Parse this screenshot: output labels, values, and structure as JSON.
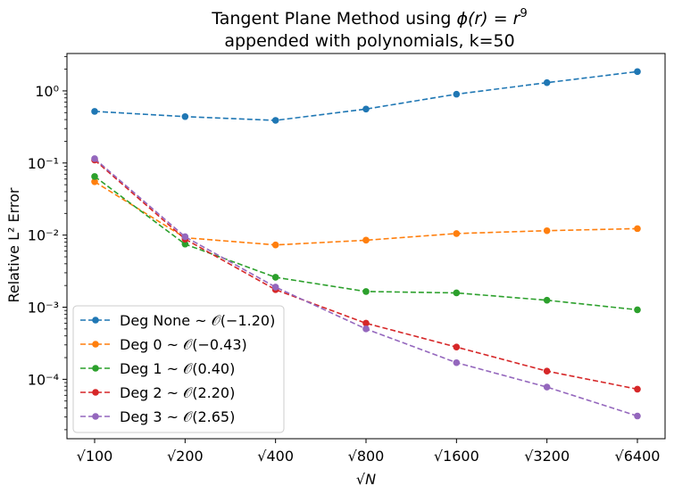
{
  "chart_data": {
    "type": "line",
    "title_line1_prefix": "Tangent Plane Method using ",
    "title_line1_math": "ϕ(r) = r",
    "title_line1_sup": "9",
    "title_line2": "appended with polynomials, k=50",
    "xlabel": "√N",
    "ylabel": "Relative L² Error",
    "y_scale": "log",
    "ylim": [
      1.5e-05,
      3.3
    ],
    "categories": [
      "√100",
      "√200",
      "√400",
      "√800",
      "√1600",
      "√3200",
      "√6400"
    ],
    "x": [
      100,
      200,
      400,
      800,
      1600,
      3200,
      6400
    ],
    "y_ticks": [
      {
        "value": 1,
        "label": "10⁰"
      },
      {
        "value": 0.1,
        "label": "10⁻¹"
      },
      {
        "value": 0.01,
        "label": "10⁻²"
      },
      {
        "value": 0.001,
        "label": "10⁻³"
      },
      {
        "value": 0.0001,
        "label": "10⁻⁴"
      }
    ],
    "legend_position": "lower-left",
    "series": [
      {
        "name": "Deg None ~ 𝒪(−1.20)",
        "color": "#1f77b4",
        "values": [
          0.52,
          0.44,
          0.39,
          0.56,
          0.9,
          1.3,
          1.85
        ]
      },
      {
        "name": "Deg 0 ~ 𝒪(−0.43)",
        "color": "#ff7f0e",
        "values": [
          0.055,
          0.0092,
          0.0073,
          0.0085,
          0.0105,
          0.0115,
          0.0123
        ]
      },
      {
        "name": "Deg 1 ~ 𝒪(0.40)",
        "color": "#2ca02c",
        "values": [
          0.065,
          0.0075,
          0.0026,
          0.00165,
          0.00158,
          0.00125,
          0.00092
        ]
      },
      {
        "name": "Deg 2 ~ 𝒪(2.20)",
        "color": "#d62728",
        "values": [
          0.11,
          0.0088,
          0.00175,
          0.0006,
          0.00028,
          0.00013,
          7.3e-05
        ]
      },
      {
        "name": "Deg 3 ~ 𝒪(2.65)",
        "color": "#9467bd",
        "values": [
          0.115,
          0.0095,
          0.0019,
          0.0005,
          0.00017,
          7.8e-05,
          3.1e-05
        ]
      }
    ]
  }
}
